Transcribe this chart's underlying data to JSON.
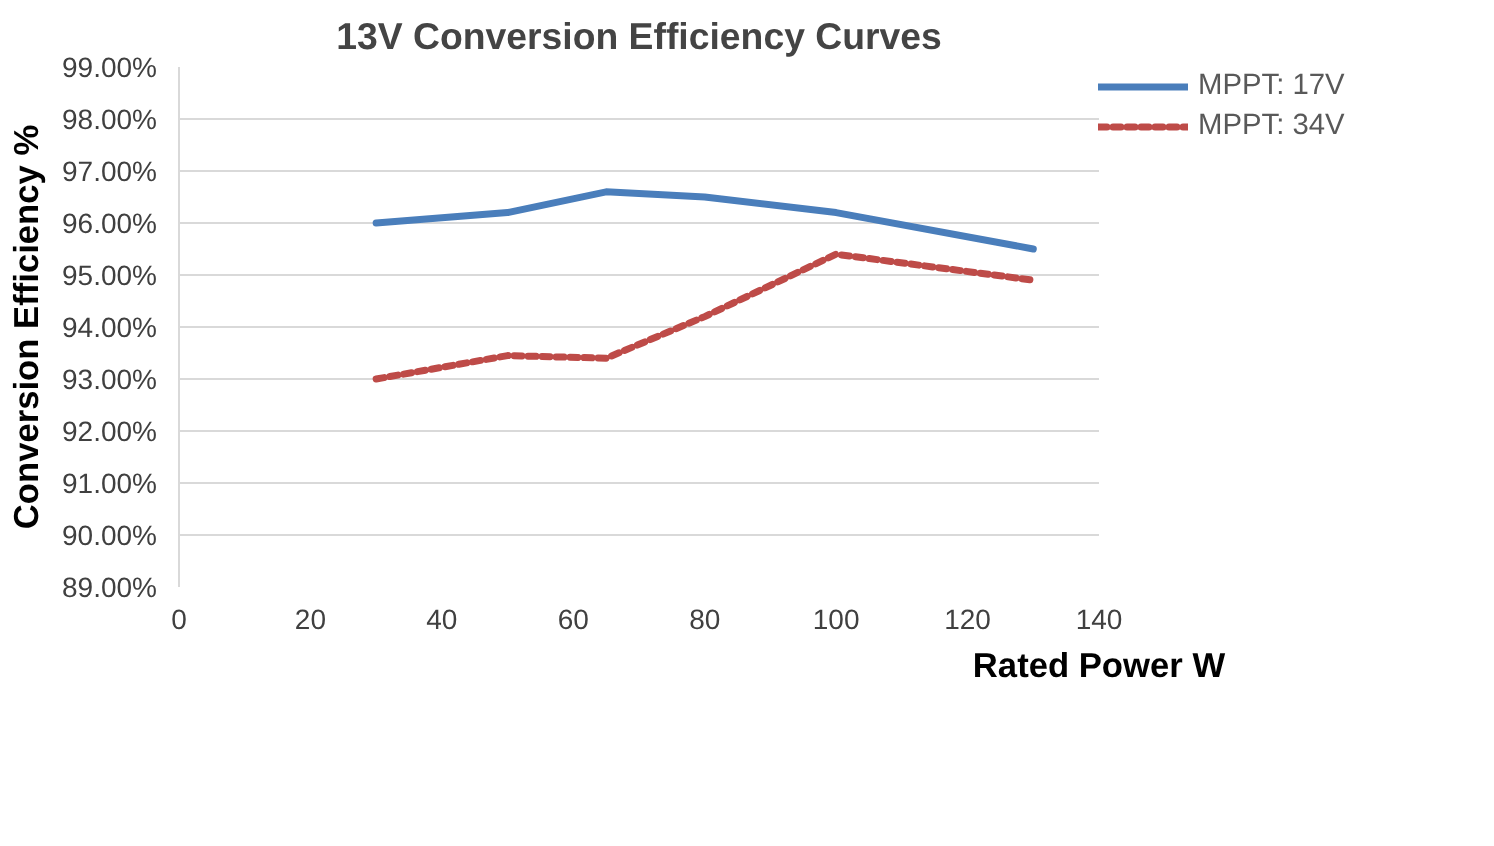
{
  "chart_data": {
    "type": "line",
    "title": "13V Conversion Efficiency Curves",
    "xlabel": "Rated Power W",
    "ylabel": "Conversion Efficiency %",
    "x": [
      30,
      50,
      65,
      80,
      100,
      130
    ],
    "series": [
      {
        "name": "MPPT: 17V",
        "color": "#4a7ebb",
        "values": [
          96.0,
          96.2,
          96.6,
          96.5,
          96.2,
          95.5
        ],
        "line_style": "solid"
      },
      {
        "name": "MPPT: 34V",
        "color": "#be4b48",
        "values": [
          93.0,
          93.45,
          93.4,
          94.2,
          95.4,
          94.9
        ],
        "line_style": "dashed"
      }
    ],
    "xlim": [
      0,
      140
    ],
    "xticks": [
      0,
      20,
      40,
      60,
      80,
      100,
      120,
      140
    ],
    "ylim": [
      89,
      99
    ],
    "yticks": [
      {
        "value": 89,
        "label": "89.00%"
      },
      {
        "value": 90,
        "label": "90.00%"
      },
      {
        "value": 91,
        "label": "91.00%"
      },
      {
        "value": 92,
        "label": "92.00%"
      },
      {
        "value": 93,
        "label": "93.00%"
      },
      {
        "value": 94,
        "label": "94.00%"
      },
      {
        "value": 95,
        "label": "95.00%"
      },
      {
        "value": 96,
        "label": "96.00%"
      },
      {
        "value": 97,
        "label": "97.00%"
      },
      {
        "value": 98,
        "label": "98.00%"
      },
      {
        "value": 99,
        "label": "99.00%"
      }
    ],
    "grid": "y",
    "legend": "top right",
    "marker": "none"
  }
}
